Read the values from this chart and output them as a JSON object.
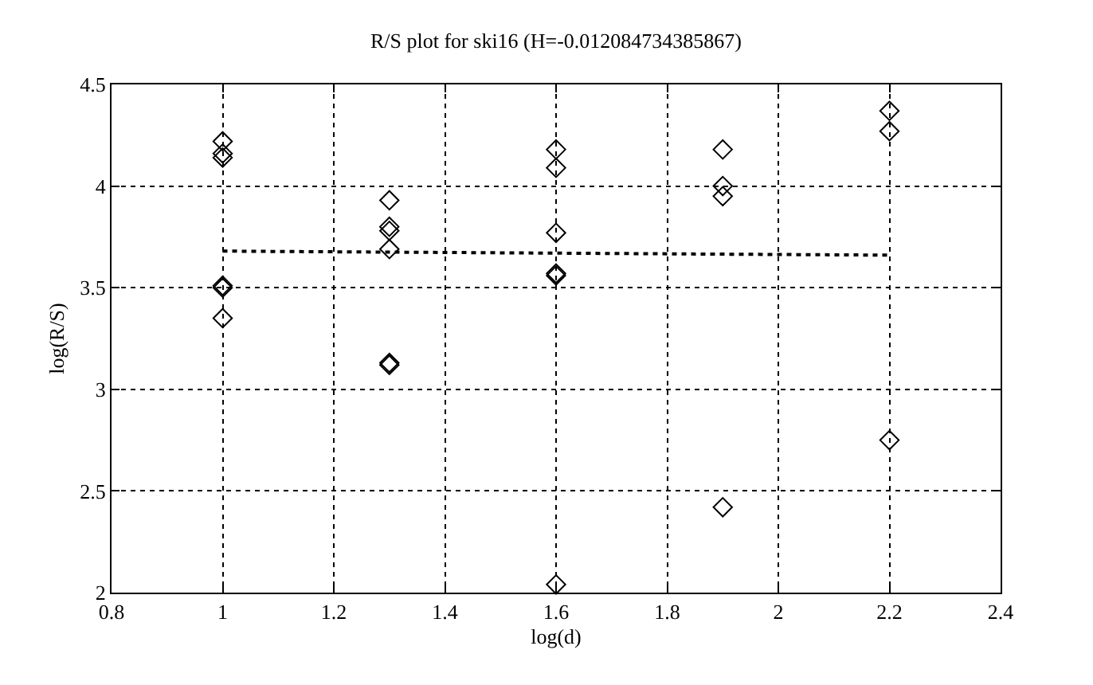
{
  "chart_data": {
    "type": "scatter",
    "title": "R/S plot for ski16 (H=-0.012084734385867)",
    "xlabel": "log(d)",
    "ylabel": "log(R/S)",
    "series": [
      {
        "color": "#000000",
        "marker": "diamond",
        "x": [
          1.0,
          1.0,
          1.0,
          1.0,
          1.0,
          1.0,
          1.3,
          1.3,
          1.3,
          1.3,
          1.3,
          1.3,
          1.6,
          1.6,
          1.6,
          1.6,
          1.6,
          1.6,
          1.9,
          1.9,
          1.9,
          1.9,
          2.2,
          2.2,
          2.2
        ],
        "values": [
          4.22,
          4.16,
          4.14,
          3.51,
          3.5,
          3.35,
          3.93,
          3.8,
          3.78,
          3.69,
          3.13,
          3.12,
          4.18,
          4.09,
          3.77,
          3.57,
          3.56,
          2.04,
          4.18,
          4.0,
          3.95,
          2.42,
          4.37,
          4.27,
          2.75
        ]
      },
      {
        "type": "line",
        "color": "#000000",
        "marker": "none",
        "line_style": "dotted",
        "x": [
          1.0,
          2.2
        ],
        "values": [
          3.68,
          3.66
        ]
      }
    ],
    "xlim": [
      0.8,
      2.4
    ],
    "xticks": [
      0.8,
      1,
      1.2,
      1.4,
      1.6,
      1.8,
      2,
      2.2,
      2.4
    ],
    "ylim": [
      2,
      4.5
    ],
    "yticks": [
      2,
      2.5,
      3,
      3.5,
      4,
      4.5
    ],
    "grid": true
  }
}
